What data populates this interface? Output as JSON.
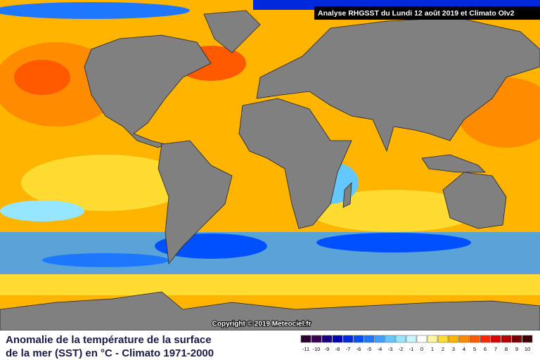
{
  "header": {
    "title": "Analyse RHGSST  du Lundi 12 août 2019 et Climato OIv2"
  },
  "copyright": "Copyright © 2019 Meteociel.fr",
  "caption": {
    "line1": "Anomalie de la température de la surface",
    "line2": "de la mer (SST) en °C - Climato 1971-2000"
  },
  "legend": {
    "items": [
      {
        "value": -11,
        "color": "#2a0030"
      },
      {
        "value": -10,
        "color": "#3c0050"
      },
      {
        "value": -9,
        "color": "#1a0082"
      },
      {
        "value": -8,
        "color": "#0000b4"
      },
      {
        "value": -7,
        "color": "#0028dc"
      },
      {
        "value": -6,
        "color": "#0050ff"
      },
      {
        "value": -5,
        "color": "#1e78ff"
      },
      {
        "value": -4,
        "color": "#3ca0ff"
      },
      {
        "value": -3,
        "color": "#64c8ff"
      },
      {
        "value": -2,
        "color": "#96e6ff"
      },
      {
        "value": -1,
        "color": "#c8f5ff"
      },
      {
        "value": 0,
        "color": "#ffffff"
      },
      {
        "value": 1,
        "color": "#fff5a0"
      },
      {
        "value": 2,
        "color": "#ffdc32"
      },
      {
        "value": 3,
        "color": "#ffb400"
      },
      {
        "value": 4,
        "color": "#ff8c00"
      },
      {
        "value": 5,
        "color": "#ff5a00"
      },
      {
        "value": 6,
        "color": "#ff2800"
      },
      {
        "value": 7,
        "color": "#dc0000"
      },
      {
        "value": 8,
        "color": "#b40000"
      },
      {
        "value": 9,
        "color": "#780000"
      },
      {
        "value": 10,
        "color": "#3c0000"
      }
    ]
  }
}
